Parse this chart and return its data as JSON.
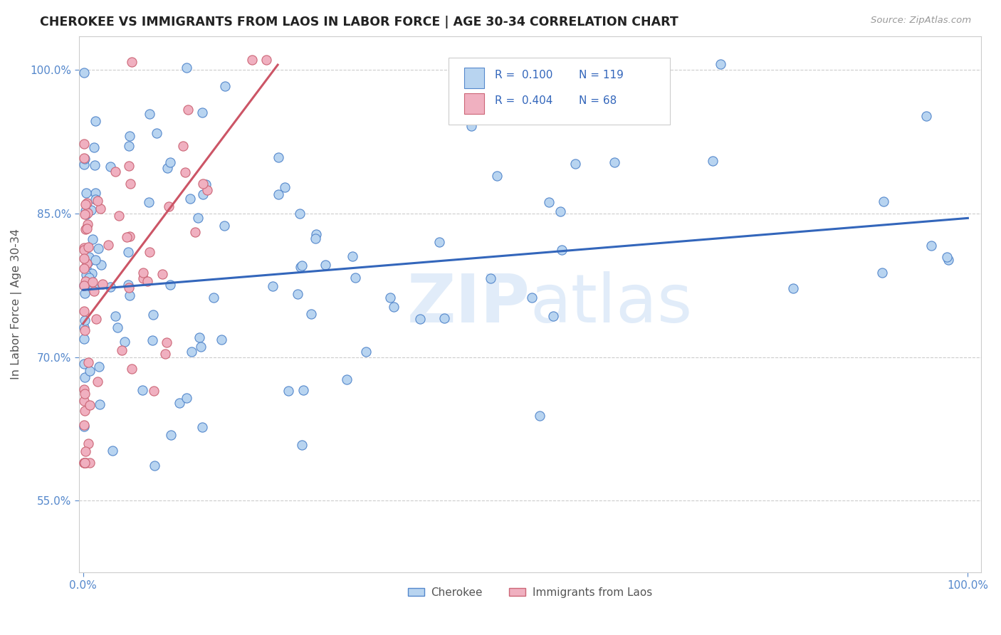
{
  "title": "CHEROKEE VS IMMIGRANTS FROM LAOS IN LABOR FORCE | AGE 30-34 CORRELATION CHART",
  "source": "Source: ZipAtlas.com",
  "ylabel": "In Labor Force | Age 30-34",
  "watermark": "ZIPatlas",
  "legend_blue_r": "0.100",
  "legend_blue_n": "119",
  "legend_pink_r": "0.404",
  "legend_pink_n": "68",
  "blue_fill": "#b8d4f0",
  "blue_edge": "#5588cc",
  "pink_fill": "#f0b0c0",
  "pink_edge": "#cc6677",
  "blue_line_color": "#3366bb",
  "pink_line_color": "#cc5566",
  "legend_r_color": "#3366bb",
  "title_color": "#222222",
  "grid_color": "#cccccc",
  "axis_color": "#5588cc",
  "blue_line_x0": 0.0,
  "blue_line_y0": 0.77,
  "blue_line_x1": 1.0,
  "blue_line_y1": 0.845,
  "pink_line_x0": 0.0,
  "pink_line_y0": 0.735,
  "pink_line_x1": 0.22,
  "pink_line_y1": 1.005,
  "xlim": [
    0.0,
    1.0
  ],
  "ylim": [
    0.475,
    1.035
  ],
  "ytick_vals": [
    0.55,
    0.7,
    0.85,
    1.0
  ],
  "ytick_labels": [
    "55.0%",
    "70.0%",
    "85.0%",
    "100.0%"
  ]
}
